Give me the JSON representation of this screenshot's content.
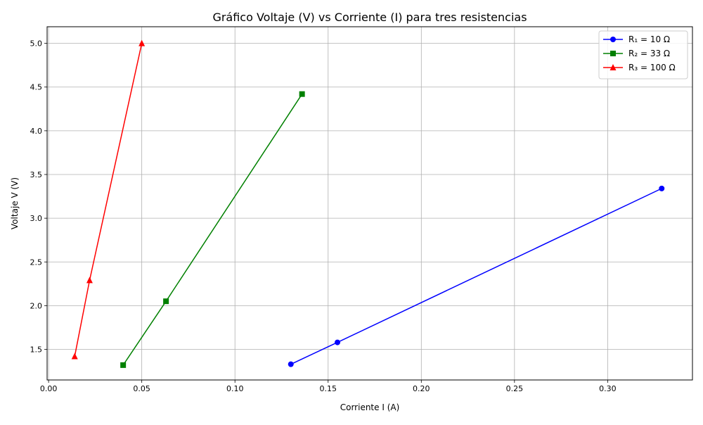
{
  "chart_data": {
    "type": "line",
    "title": "Gráfico Voltaje (V) vs Corriente (I) para tres resistencias",
    "xlabel": "Corriente I (A)",
    "ylabel": "Voltaje V (V)",
    "xlim": [
      -0.0008,
      0.3455
    ],
    "ylim": [
      1.15,
      5.19
    ],
    "x_ticks": [
      0.0,
      0.05,
      0.1,
      0.15,
      0.2,
      0.25,
      0.3
    ],
    "x_tick_labels": [
      "0.00",
      "0.05",
      "0.10",
      "0.15",
      "0.20",
      "0.25",
      "0.30"
    ],
    "y_ticks": [
      1.5,
      2.0,
      2.5,
      3.0,
      3.5,
      4.0,
      4.5,
      5.0
    ],
    "y_tick_labels": [
      "1.5",
      "2.0",
      "2.5",
      "3.0",
      "3.5",
      "4.0",
      "4.5",
      "5.0"
    ],
    "grid": true,
    "legend_position": "top-right",
    "series": [
      {
        "name": "R₁ = 10 Ω",
        "color": "#0000ff",
        "marker": "circle",
        "x": [
          0.13,
          0.155,
          0.329
        ],
        "y": [
          1.33,
          1.58,
          3.34
        ]
      },
      {
        "name": "R₂ = 33 Ω",
        "color": "#008000",
        "marker": "square",
        "x": [
          0.04,
          0.063,
          0.136
        ],
        "y": [
          1.32,
          2.05,
          4.42
        ]
      },
      {
        "name": "R₃ = 100 Ω",
        "color": "#ff0000",
        "marker": "triangle",
        "x": [
          0.014,
          0.022,
          0.05
        ],
        "y": [
          1.42,
          2.29,
          5.0
        ]
      }
    ]
  }
}
